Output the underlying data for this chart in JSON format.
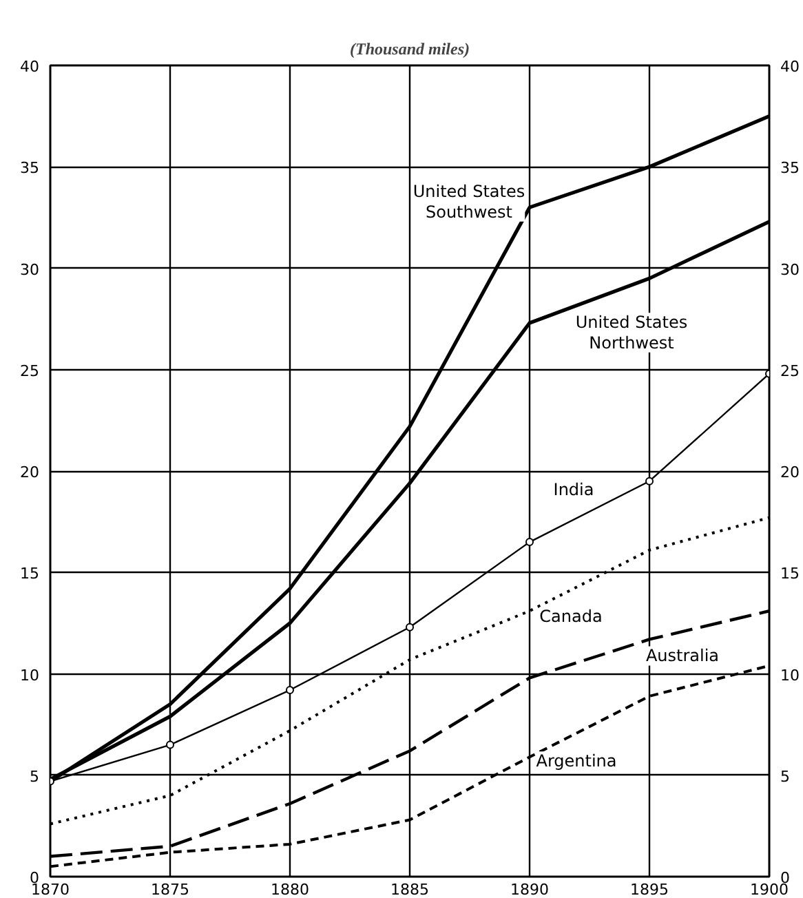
{
  "chart_data": {
    "type": "line",
    "title": "(Thousand miles)",
    "x": [
      1870,
      1875,
      1880,
      1885,
      1890,
      1895,
      1900
    ],
    "xlim": [
      1870,
      1900
    ],
    "xticks": [
      1870,
      1875,
      1880,
      1885,
      1890,
      1895,
      1900
    ],
    "ylim": [
      0,
      40
    ],
    "yticks": [
      0,
      5,
      10,
      15,
      20,
      25,
      30,
      35,
      40
    ],
    "y2lim": [
      0,
      40
    ],
    "y2ticks": [
      0,
      5,
      10,
      15,
      20,
      25,
      30,
      35,
      40
    ],
    "grid": true,
    "legend": false,
    "series": [
      {
        "name": "United States\nSouthwest",
        "color": "#000000",
        "line_style": "solid",
        "marker": "none",
        "values": [
          4.7,
          8.5,
          14.2,
          22.2,
          33.0,
          35.0,
          37.5
        ]
      },
      {
        "name": "United States\nNorthwest",
        "color": "#000000",
        "line_style": "solid",
        "marker": "none",
        "values": [
          4.8,
          7.9,
          12.5,
          19.4,
          27.3,
          29.5,
          32.3
        ]
      },
      {
        "name": "India",
        "color": "#000000",
        "line_style": "solid",
        "marker": "circle",
        "values": [
          4.7,
          6.5,
          9.2,
          12.3,
          16.5,
          19.5,
          24.8
        ]
      },
      {
        "name": "Canada",
        "color": "#000000",
        "line_style": "dotted",
        "marker": "none",
        "values": [
          2.6,
          4.0,
          7.2,
          10.7,
          13.1,
          16.1,
          17.7
        ]
      },
      {
        "name": "Australia",
        "color": "#000000",
        "line_style": "dashed",
        "marker": "none",
        "values": [
          1.0,
          1.5,
          3.6,
          6.2,
          9.8,
          11.7,
          13.1
        ]
      },
      {
        "name": "Argentina",
        "color": "#000000",
        "line_style": "dashed",
        "marker": "none",
        "values": [
          0.5,
          1.2,
          1.6,
          2.8,
          5.9,
          8.9,
          10.4
        ]
      }
    ]
  }
}
